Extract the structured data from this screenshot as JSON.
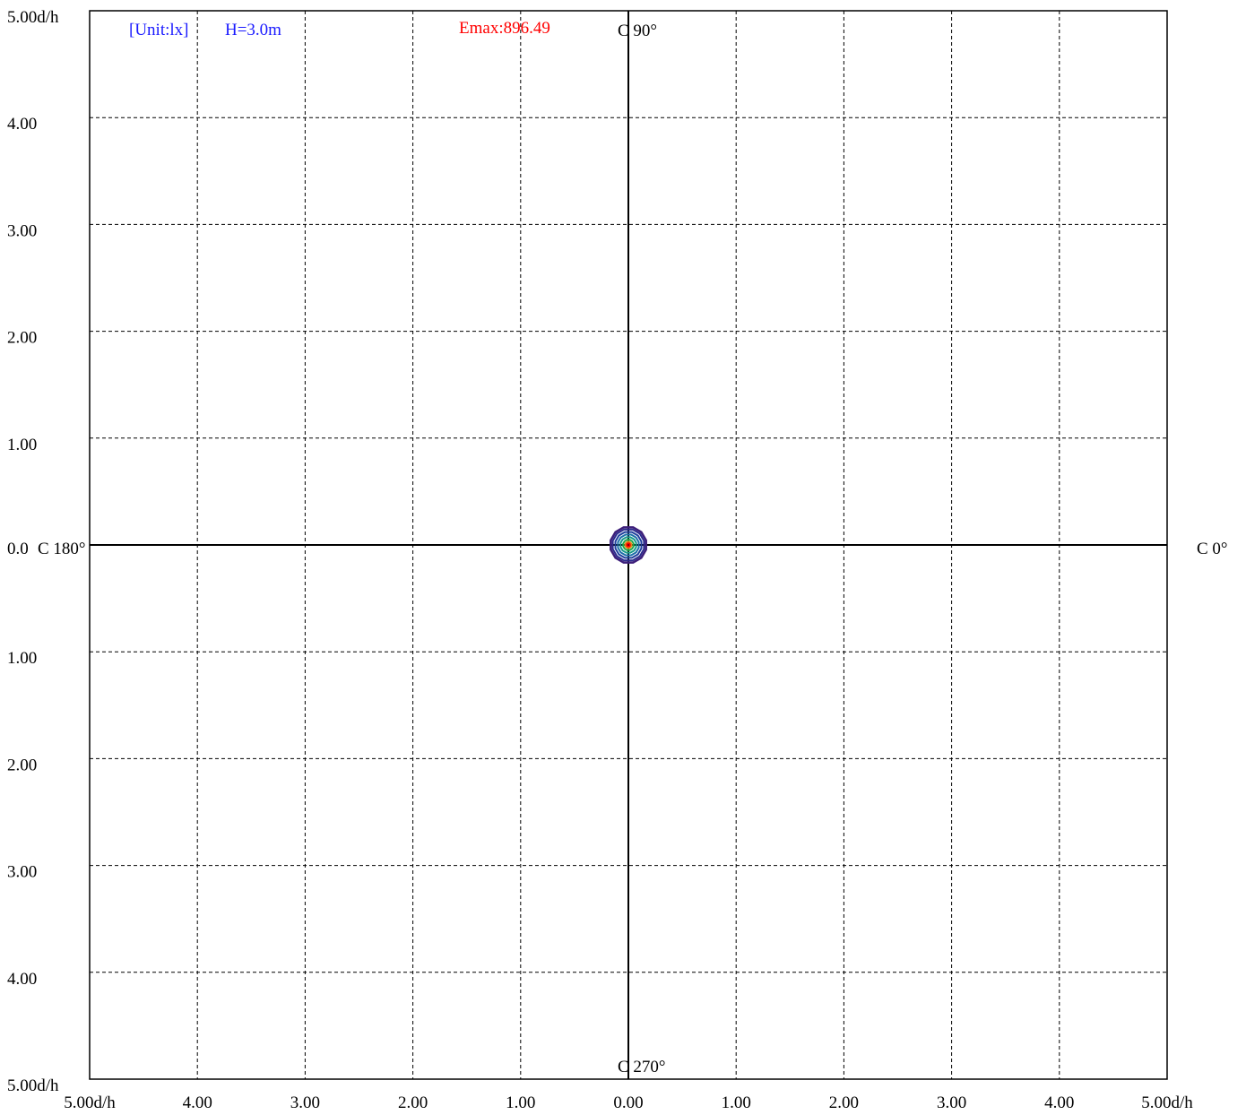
{
  "chart_data": {
    "type": "contour",
    "header": {
      "unit_label": "[Unit:lx]",
      "height_label": "H=3.0m",
      "emax_label": "Emax:896.49"
    },
    "c_labels": {
      "c0": "C 0°",
      "c90": "C 90°",
      "c180": "C 180°",
      "c270": "C 270°"
    },
    "origin_label": "0.0",
    "xlim": [
      -5,
      5
    ],
    "ylim": [
      -5,
      5
    ],
    "grid": true,
    "x_tick_labels": [
      "5.00d/h",
      "4.00",
      "3.00",
      "2.00",
      "1.00",
      "0.00",
      "1.00",
      "2.00",
      "3.00",
      "4.00",
      "5.00d/h"
    ],
    "y_tick_labels_top": [
      "5.00d/h",
      "4.00",
      "3.00",
      "2.00",
      "1.00"
    ],
    "y_tick_labels_bottom": [
      "1.00",
      "2.00",
      "3.00",
      "4.00",
      "5.00d/h"
    ],
    "contours": [
      {
        "radius": 0.17,
        "color": "#3d1f7a"
      },
      {
        "radius": 0.15,
        "color": "#2b2a8c"
      },
      {
        "radius": 0.125,
        "color": "#1f3f9c"
      },
      {
        "radius": 0.1,
        "color": "#1c6fa8"
      },
      {
        "radius": 0.075,
        "color": "#1a9a8a"
      },
      {
        "radius": 0.05,
        "color": "#1fa84a"
      },
      {
        "radius": 0.03,
        "color": "#e08a1a"
      },
      {
        "radius": 0.015,
        "color": "#ff0000"
      }
    ]
  }
}
